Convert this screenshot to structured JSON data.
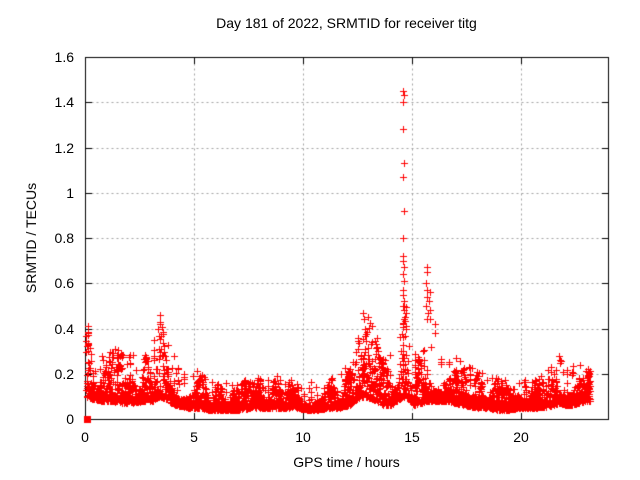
{
  "chart_data": {
    "type": "scatter",
    "title": "Day 181 of 2022, SRMTID for receiver titg",
    "xlabel": "GPS time / hours",
    "ylabel": "SRMTID / TECUs",
    "xlim": [
      0,
      24
    ],
    "ylim": [
      0,
      1.6
    ],
    "xtick_values": [
      0,
      5,
      10,
      15,
      20
    ],
    "xtick_labels": [
      "0",
      "5",
      "10",
      "15",
      "20"
    ],
    "ytick_values": [
      0,
      0.2,
      0.4,
      0.6,
      0.8,
      1,
      1.2,
      1.4,
      1.6
    ],
    "ytick_labels": [
      "0",
      "0.2",
      "0.4",
      "0.6",
      "0.8",
      "1",
      "1.2",
      "1.4",
      "1.6"
    ],
    "grid": {
      "show": true,
      "color": "#a0a0a0",
      "style": "dashed"
    },
    "axis_color": "#000000",
    "background": "#ffffff",
    "legend": "none",
    "marker": {
      "shape": "plus",
      "color": "#ff0000",
      "size": 7
    },
    "origin_point": {
      "x": 0.08,
      "y": 0,
      "marker": "filled-square",
      "color": "#ff0000"
    },
    "series": [
      {
        "name": "SRMTID",
        "color": "#ff0000",
        "time_start": 0.05,
        "time_end": 23.2,
        "band_envelope": [
          [
            0.05,
            0.1,
            0.44
          ],
          [
            0.3,
            0.09,
            0.34
          ],
          [
            0.8,
            0.08,
            0.28
          ],
          [
            1.2,
            0.08,
            0.32
          ],
          [
            1.7,
            0.07,
            0.3
          ],
          [
            2.2,
            0.07,
            0.32
          ],
          [
            2.7,
            0.08,
            0.3
          ],
          [
            3.1,
            0.08,
            0.36
          ],
          [
            3.45,
            0.1,
            0.46
          ],
          [
            3.8,
            0.08,
            0.34
          ],
          [
            4.2,
            0.06,
            0.26
          ],
          [
            4.7,
            0.05,
            0.22
          ],
          [
            5.2,
            0.05,
            0.22
          ],
          [
            5.7,
            0.04,
            0.18
          ],
          [
            6.2,
            0.04,
            0.17
          ],
          [
            6.7,
            0.04,
            0.16
          ],
          [
            7.2,
            0.04,
            0.17
          ],
          [
            7.7,
            0.05,
            0.18
          ],
          [
            8.2,
            0.05,
            0.19
          ],
          [
            8.7,
            0.05,
            0.2
          ],
          [
            9.2,
            0.05,
            0.18
          ],
          [
            9.7,
            0.05,
            0.19
          ],
          [
            10.2,
            0.04,
            0.16
          ],
          [
            10.7,
            0.04,
            0.17
          ],
          [
            11.2,
            0.05,
            0.18
          ],
          [
            11.7,
            0.05,
            0.2
          ],
          [
            12.1,
            0.06,
            0.26
          ],
          [
            12.5,
            0.09,
            0.4
          ],
          [
            12.8,
            0.1,
            0.46
          ],
          [
            13.1,
            0.09,
            0.43
          ],
          [
            13.4,
            0.08,
            0.38
          ],
          [
            13.7,
            0.06,
            0.28
          ],
          [
            14.0,
            0.06,
            0.28
          ],
          [
            14.3,
            0.08,
            0.36
          ],
          [
            14.6,
            0.1,
            0.55
          ],
          [
            14.8,
            0.09,
            0.45
          ],
          [
            15.1,
            0.06,
            0.3
          ],
          [
            15.4,
            0.07,
            0.3
          ],
          [
            15.7,
            0.08,
            0.42
          ],
          [
            15.9,
            0.08,
            0.38
          ],
          [
            16.2,
            0.08,
            0.34
          ],
          [
            16.6,
            0.08,
            0.31
          ],
          [
            17.0,
            0.07,
            0.28
          ],
          [
            17.5,
            0.06,
            0.25
          ],
          [
            18.0,
            0.05,
            0.22
          ],
          [
            18.5,
            0.05,
            0.21
          ],
          [
            19.0,
            0.04,
            0.18
          ],
          [
            19.5,
            0.04,
            0.17
          ],
          [
            20.0,
            0.05,
            0.17
          ],
          [
            20.5,
            0.05,
            0.18
          ],
          [
            21.0,
            0.05,
            0.2
          ],
          [
            21.4,
            0.06,
            0.24
          ],
          [
            21.8,
            0.07,
            0.28
          ],
          [
            22.2,
            0.06,
            0.23
          ],
          [
            22.6,
            0.07,
            0.24
          ],
          [
            23.0,
            0.08,
            0.23
          ],
          [
            23.2,
            0.08,
            0.21
          ]
        ],
        "peak_points": [
          [
            0.12,
            0.41
          ],
          [
            0.15,
            0.38
          ],
          [
            3.42,
            0.46
          ],
          [
            3.45,
            0.43
          ],
          [
            12.75,
            0.47
          ],
          [
            12.8,
            0.44
          ],
          [
            13.0,
            0.45
          ],
          [
            14.6,
            1.45
          ],
          [
            14.62,
            1.43
          ],
          [
            14.61,
            1.4
          ],
          [
            14.6,
            1.28
          ],
          [
            14.62,
            1.13
          ],
          [
            14.6,
            1.07
          ],
          [
            14.63,
            0.92
          ],
          [
            14.61,
            0.8
          ],
          [
            14.58,
            0.72
          ],
          [
            14.6,
            0.7
          ],
          [
            14.62,
            0.67
          ],
          [
            14.6,
            0.64
          ],
          [
            14.63,
            0.61
          ],
          [
            14.57,
            0.57
          ],
          [
            14.61,
            0.55
          ],
          [
            14.65,
            0.52
          ],
          [
            14.6,
            0.5
          ],
          [
            14.64,
            0.48
          ],
          [
            14.66,
            0.44
          ],
          [
            14.59,
            0.42
          ],
          [
            15.68,
            0.67
          ],
          [
            15.7,
            0.65
          ],
          [
            15.66,
            0.6
          ],
          [
            15.69,
            0.57
          ],
          [
            15.71,
            0.54
          ],
          [
            15.67,
            0.5
          ],
          [
            15.72,
            0.47
          ],
          [
            15.7,
            0.44
          ],
          [
            15.82,
            0.56
          ],
          [
            15.8,
            0.52
          ],
          [
            15.84,
            0.48
          ],
          [
            15.83,
            0.44
          ],
          [
            16.05,
            0.42
          ],
          [
            16.08,
            0.38
          ],
          [
            21.75,
            0.28
          ],
          [
            21.8,
            0.26
          ]
        ]
      }
    ]
  }
}
